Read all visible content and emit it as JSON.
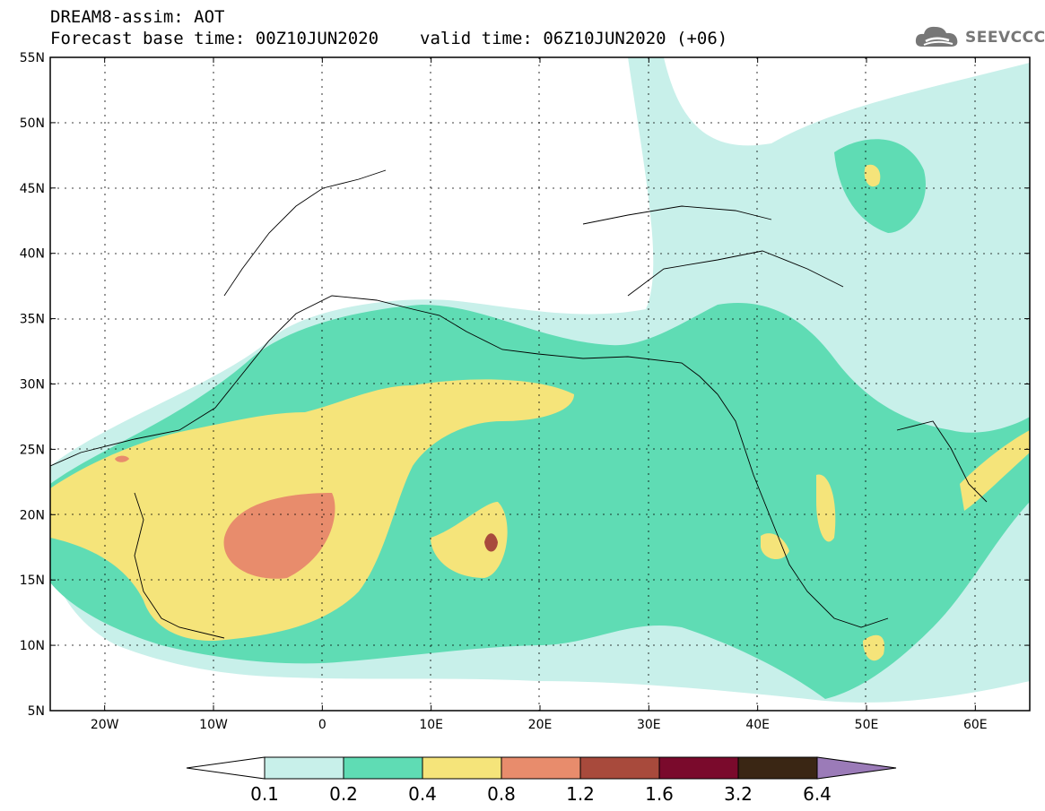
{
  "header": {
    "title": "DREAM8-assim: AOT",
    "base_time": "Forecast base time: 00Z10JUN2020",
    "valid_time": "valid time: 06Z10JUN2020 (+06)"
  },
  "logo": {
    "text": "SEEVCCC",
    "icon": "cloud-icon",
    "color": "#777777"
  },
  "map": {
    "lon_range": [
      -25,
      65
    ],
    "lat_range": [
      5,
      55
    ],
    "lon_ticks": [
      {
        "v": -20,
        "label": "20W"
      },
      {
        "v": -10,
        "label": "10W"
      },
      {
        "v": 0,
        "label": "0"
      },
      {
        "v": 10,
        "label": "10E"
      },
      {
        "v": 20,
        "label": "20E"
      },
      {
        "v": 30,
        "label": "30E"
      },
      {
        "v": 40,
        "label": "40E"
      },
      {
        "v": 50,
        "label": "50E"
      },
      {
        "v": 60,
        "label": "60E"
      }
    ],
    "lat_ticks": [
      {
        "v": 55,
        "label": "55N"
      },
      {
        "v": 50,
        "label": "50N"
      },
      {
        "v": 45,
        "label": "45N"
      },
      {
        "v": 40,
        "label": "40N"
      },
      {
        "v": 35,
        "label": "35N"
      },
      {
        "v": 30,
        "label": "30N"
      },
      {
        "v": 25,
        "label": "25N"
      },
      {
        "v": 20,
        "label": "20N"
      },
      {
        "v": 15,
        "label": "15N"
      },
      {
        "v": 10,
        "label": "10N"
      },
      {
        "v": 5,
        "label": "5N"
      }
    ]
  },
  "colorbar": {
    "levels": [
      "0.1",
      "0.2",
      "0.4",
      "0.8",
      "1.2",
      "1.6",
      "3.2",
      "6.4"
    ],
    "colors": [
      "#c8f0ea",
      "#5fdcb4",
      "#f5e47a",
      "#e88c6c",
      "#a84a3c",
      "#7a0a2c",
      "#3a2614"
    ],
    "under_color": "#ffffff",
    "over_color": "#9b7bb8"
  }
}
